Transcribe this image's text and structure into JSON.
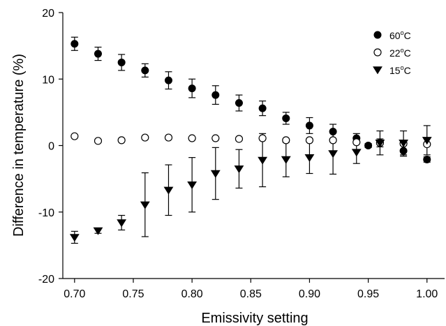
{
  "chart_data": {
    "type": "scatter",
    "title": "",
    "xlabel": "Emissivity setting",
    "ylabel": "Difference in temperature (%)",
    "xlim": [
      0.69,
      1.015
    ],
    "ylim": [
      -20,
      20
    ],
    "xticks": [
      0.7,
      0.75,
      0.8,
      0.85,
      0.9,
      0.95,
      1.0
    ],
    "xtick_labels": [
      "0.70",
      "0.75",
      "0.80",
      "0.85",
      "0.90",
      "0.95",
      "1.00"
    ],
    "yticks": [
      -20,
      -10,
      0,
      10,
      20
    ],
    "ytick_labels": [
      "-20",
      "-10",
      "0",
      "10",
      "20"
    ],
    "grid": false,
    "legend_position": "top-right",
    "series": [
      {
        "name_base": "60",
        "name_sup": "o",
        "name_unit": "C",
        "marker": "filled-circle",
        "points": [
          {
            "x": 0.7,
            "y": 15.3,
            "err": 1.0
          },
          {
            "x": 0.72,
            "y": 13.8,
            "err": 1.0
          },
          {
            "x": 0.74,
            "y": 12.5,
            "err": 1.2
          },
          {
            "x": 0.76,
            "y": 11.3,
            "err": 1.0
          },
          {
            "x": 0.78,
            "y": 9.8,
            "err": 1.3
          },
          {
            "x": 0.8,
            "y": 8.6,
            "err": 1.4
          },
          {
            "x": 0.82,
            "y": 7.6,
            "err": 1.4
          },
          {
            "x": 0.84,
            "y": 6.4,
            "err": 1.2
          },
          {
            "x": 0.86,
            "y": 5.6,
            "err": 1.1
          },
          {
            "x": 0.88,
            "y": 4.1,
            "err": 0.9
          },
          {
            "x": 0.9,
            "y": 3.0,
            "err": 1.2
          },
          {
            "x": 0.92,
            "y": 2.1,
            "err": 1.1
          },
          {
            "x": 0.94,
            "y": 1.1,
            "err": 0.7
          },
          {
            "x": 0.95,
            "y": 0.0,
            "err": 0.3
          },
          {
            "x": 0.96,
            "y": 0.4,
            "err": 0.6
          },
          {
            "x": 0.98,
            "y": -0.8,
            "err": 0.8
          },
          {
            "x": 1.0,
            "y": -2.1,
            "err": 0.4
          }
        ]
      },
      {
        "name_base": "22",
        "name_sup": "o",
        "name_unit": "C",
        "marker": "open-circle",
        "points": [
          {
            "x": 0.7,
            "y": 1.4,
            "err": 0
          },
          {
            "x": 0.72,
            "y": 0.7,
            "err": 0
          },
          {
            "x": 0.74,
            "y": 0.8,
            "err": 0
          },
          {
            "x": 0.76,
            "y": 1.2,
            "err": 0
          },
          {
            "x": 0.78,
            "y": 1.2,
            "err": 0
          },
          {
            "x": 0.8,
            "y": 1.1,
            "err": 0
          },
          {
            "x": 0.82,
            "y": 1.1,
            "err": 0
          },
          {
            "x": 0.84,
            "y": 1.0,
            "err": 0
          },
          {
            "x": 0.86,
            "y": 1.1,
            "err": 0
          },
          {
            "x": 0.88,
            "y": 0.8,
            "err": 0
          },
          {
            "x": 0.9,
            "y": 0.8,
            "err": 0
          },
          {
            "x": 0.92,
            "y": 0.8,
            "err": 0
          },
          {
            "x": 0.94,
            "y": 0.5,
            "err": 0
          },
          {
            "x": 0.96,
            "y": 0.4,
            "err": 0
          },
          {
            "x": 0.98,
            "y": 0.3,
            "err": 0
          },
          {
            "x": 1.0,
            "y": 0.2,
            "err": 0
          }
        ]
      },
      {
        "name_base": "15",
        "name_sup": "o",
        "name_unit": "C",
        "marker": "filled-triangle-down",
        "points": [
          {
            "x": 0.7,
            "y": -13.8,
            "err": 0.9
          },
          {
            "x": 0.72,
            "y": -12.8,
            "err": 0.4
          },
          {
            "x": 0.74,
            "y": -11.6,
            "err": 1.1
          },
          {
            "x": 0.76,
            "y": -8.9,
            "err": 4.8
          },
          {
            "x": 0.78,
            "y": -6.7,
            "err": 3.8
          },
          {
            "x": 0.8,
            "y": -5.9,
            "err": 4.1
          },
          {
            "x": 0.82,
            "y": -4.2,
            "err": 3.9
          },
          {
            "x": 0.84,
            "y": -3.5,
            "err": 2.9
          },
          {
            "x": 0.86,
            "y": -2.2,
            "err": 4.0
          },
          {
            "x": 0.88,
            "y": -2.1,
            "err": 2.6
          },
          {
            "x": 0.9,
            "y": -1.8,
            "err": 2.4
          },
          {
            "x": 0.92,
            "y": -1.2,
            "err": 3.1
          },
          {
            "x": 0.94,
            "y": -1.0,
            "err": 1.7
          },
          {
            "x": 0.96,
            "y": 0.4,
            "err": 1.8
          },
          {
            "x": 0.98,
            "y": 0.4,
            "err": 1.8
          },
          {
            "x": 1.0,
            "y": 0.8,
            "err": 2.2
          }
        ]
      }
    ]
  }
}
